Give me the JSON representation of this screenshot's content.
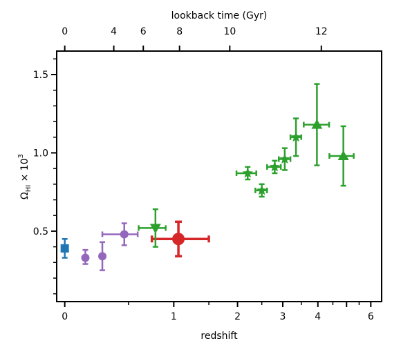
{
  "chart_data": {
    "type": "scatter",
    "title": "",
    "xlabel": "redshift",
    "x_top_label": "lookback time (Gyr)",
    "ylabel_main": "Ω",
    "ylabel_sub": "HI",
    "ylabel_suffix": " × 10",
    "ylabel_exp": "3",
    "x_scale": "log(1+z)",
    "xlim": [
      -0.05,
      6.5
    ],
    "ylim": [
      0.05,
      1.65
    ],
    "x_ticks_bottom": [
      0,
      1,
      2,
      3,
      4,
      5,
      6
    ],
    "x_ticks_bottom_labels": [
      "0",
      "1",
      "2",
      "3",
      "4",
      "",
      "6"
    ],
    "x_ticks_bottom_minor": [
      0.5,
      1.5,
      2.5,
      3.5,
      4.5,
      5.5
    ],
    "x_ticks_top": [
      0,
      4,
      6,
      8,
      10,
      12
    ],
    "x_ticks_top_labels": [
      "0",
      "4",
      "6",
      "8",
      "10",
      "12"
    ],
    "y_ticks": [
      0.5,
      1.0,
      1.5
    ],
    "y_ticks_labels": [
      "0.5",
      "1.0",
      "1.5"
    ],
    "y_ticks_minor": [
      0.1,
      0.2,
      0.3,
      0.4,
      0.6,
      0.7,
      0.8,
      0.9,
      1.1,
      1.2,
      1.3,
      1.4,
      1.6
    ],
    "grid": false,
    "series": [
      {
        "color": "#1f77b4",
        "marker": "square",
        "points": [
          {
            "x": 0.0,
            "y": 0.39,
            "xerr": [
              0.0,
              0.0
            ],
            "yerr": [
              0.06,
              0.06
            ]
          }
        ]
      },
      {
        "color": "#9467bd",
        "marker": "circle",
        "points": [
          {
            "x": 0.14,
            "y": 0.33,
            "xerr": [
              0.0,
              0.0
            ],
            "yerr": [
              0.04,
              0.05
            ]
          },
          {
            "x": 0.27,
            "y": 0.34,
            "xerr": [
              0.0,
              0.0
            ],
            "yerr": [
              0.09,
              0.09
            ]
          },
          {
            "x": 0.46,
            "y": 0.48,
            "xerr": [
              0.19,
              0.13
            ],
            "yerr": [
              0.07,
              0.07
            ]
          }
        ]
      },
      {
        "color": "#d62728",
        "marker": "circle-large",
        "points": [
          {
            "x": 1.06,
            "y": 0.45,
            "xerr": [
              0.32,
              0.44
            ],
            "yerr": [
              0.11,
              0.11
            ]
          }
        ]
      },
      {
        "color": "#2ca02c",
        "marker": "triangle-down",
        "points": [
          {
            "x": 0.78,
            "y": 0.52,
            "xerr": [
              0.18,
              0.12
            ],
            "yerr": [
              0.12,
              0.12
            ]
          }
        ]
      },
      {
        "color": "#2ca02c",
        "marker": "star",
        "points": [
          {
            "x": 2.2,
            "y": 0.87,
            "xerr": [
              0.22,
              0.18
            ],
            "yerr": [
              0.04,
              0.04
            ]
          },
          {
            "x": 2.5,
            "y": 0.76,
            "xerr": [
              0.14,
              0.12
            ],
            "yerr": [
              0.04,
              0.04
            ]
          },
          {
            "x": 2.8,
            "y": 0.91,
            "xerr": [
              0.18,
              0.15
            ],
            "yerr": [
              0.04,
              0.04
            ]
          },
          {
            "x": 3.05,
            "y": 0.96,
            "xerr": [
              0.15,
              0.15
            ],
            "yerr": [
              0.07,
              0.07
            ]
          },
          {
            "x": 3.35,
            "y": 1.1,
            "xerr": [
              0.15,
              0.15
            ],
            "yerr": [
              0.12,
              0.12
            ]
          }
        ]
      },
      {
        "color": "#2ca02c",
        "marker": "triangle-up",
        "points": [
          {
            "x": 3.97,
            "y": 1.18,
            "xerr": [
              0.4,
              0.4
            ],
            "yerr": [
              0.26,
              0.26
            ]
          },
          {
            "x": 4.88,
            "y": 0.98,
            "xerr": [
              0.5,
              0.4
            ],
            "yerr": [
              0.19,
              0.19
            ]
          }
        ]
      }
    ]
  }
}
